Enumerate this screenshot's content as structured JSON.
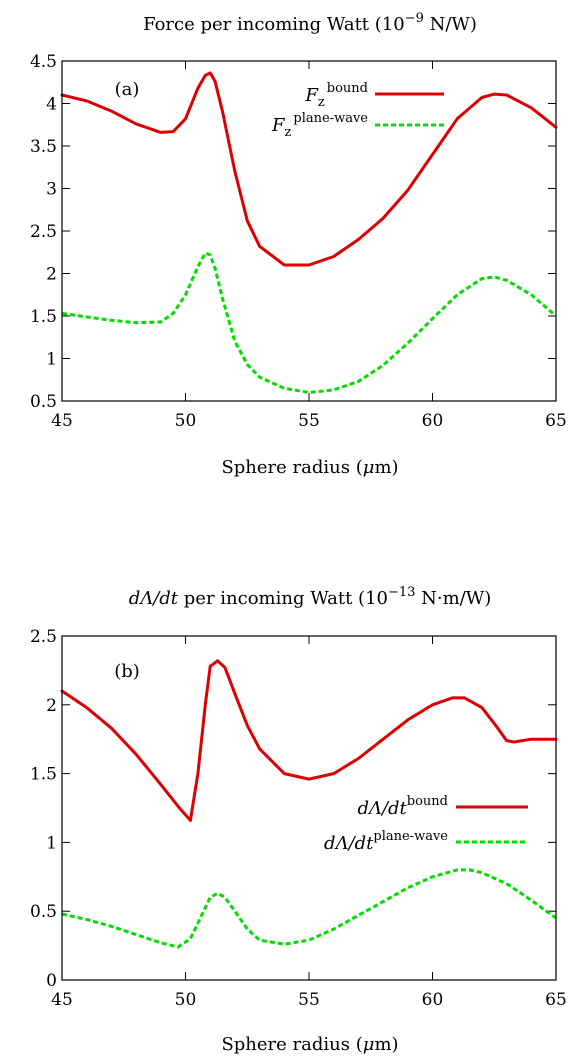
{
  "chart_data": [
    {
      "type": "line",
      "title": "Force per incoming Watt (10",
      "title_exp": "−9",
      "title_unit": " N/W)",
      "panel_label": "(a)",
      "xlabel": "Sphere radius (",
      "xlabel_sym": "μ",
      "xlabel_unit": "m)",
      "xlim": [
        45,
        65
      ],
      "ylim": [
        0.5,
        4.5
      ],
      "xticks": [
        45,
        50,
        55,
        60,
        65
      ],
      "xtick_labels": [
        "45",
        "50",
        "55",
        "60",
        "65"
      ],
      "yticks": [
        0.5,
        1,
        1.5,
        2,
        2.5,
        3,
        3.5,
        4,
        4.5
      ],
      "ytick_labels": [
        "0.5",
        "1",
        "1.5",
        "2",
        "2.5",
        "3",
        "3.5",
        "4",
        "4.5"
      ],
      "legend_position": "top-right",
      "series": [
        {
          "name": "F_z^bound",
          "legend_base": "F",
          "legend_sub": "z",
          "legend_sup": "bound",
          "color": "#dd0000",
          "dash": "solid",
          "x": [
            45,
            46,
            47,
            48,
            49,
            49.5,
            50,
            50.5,
            50.8,
            51,
            51.2,
            51.5,
            52,
            52.5,
            53,
            54,
            55,
            56,
            57,
            58,
            59,
            60,
            61,
            62,
            62.5,
            63,
            64,
            65
          ],
          "y": [
            4.1,
            4.03,
            3.91,
            3.76,
            3.66,
            3.67,
            3.82,
            4.18,
            4.33,
            4.36,
            4.26,
            3.9,
            3.2,
            2.62,
            2.32,
            2.1,
            2.1,
            2.2,
            2.4,
            2.65,
            2.98,
            3.4,
            3.82,
            4.07,
            4.11,
            4.1,
            3.95,
            3.72
          ]
        },
        {
          "name": "F_z^plane-wave",
          "legend_base": "F",
          "legend_sub": "z",
          "legend_sup": "plane-wave",
          "color": "#00dd00",
          "dash": "dashed",
          "x": [
            45,
            46,
            47,
            48,
            49,
            49.5,
            50,
            50.5,
            50.8,
            51,
            51.2,
            51.5,
            52,
            52.5,
            53,
            54,
            55,
            56,
            57,
            58,
            59,
            60,
            61,
            62,
            62.5,
            63,
            64,
            65
          ],
          "y": [
            1.53,
            1.49,
            1.45,
            1.42,
            1.43,
            1.53,
            1.75,
            2.08,
            2.24,
            2.22,
            2.06,
            1.7,
            1.2,
            0.93,
            0.78,
            0.65,
            0.6,
            0.63,
            0.73,
            0.92,
            1.18,
            1.47,
            1.75,
            1.94,
            1.96,
            1.92,
            1.75,
            1.5
          ]
        }
      ]
    },
    {
      "type": "line",
      "title": "dΛ/dt",
      "title_rest": " per incoming Watt (10",
      "title_exp": "−13",
      "title_unit": " N·m/W)",
      "panel_label": "(b)",
      "xlabel": "Sphere radius (",
      "xlabel_sym": "μ",
      "xlabel_unit": "m)",
      "xlim": [
        45,
        65
      ],
      "ylim": [
        0,
        2.5
      ],
      "xticks": [
        45,
        50,
        55,
        60,
        65
      ],
      "xtick_labels": [
        "45",
        "50",
        "55",
        "60",
        "65"
      ],
      "yticks": [
        0,
        0.5,
        1,
        1.5,
        2,
        2.5
      ],
      "ytick_labels": [
        "0",
        "0.5",
        "1",
        "1.5",
        "2",
        "2.5"
      ],
      "legend_position": "right",
      "series": [
        {
          "name": "dΛ/dt^bound",
          "legend_base": "dΛ/dt",
          "legend_sup": "bound",
          "color": "#dd0000",
          "dash": "solid",
          "x": [
            45,
            46,
            47,
            48,
            49,
            49.8,
            50.2,
            50.5,
            50.8,
            51,
            51.3,
            51.6,
            52,
            52.5,
            53,
            54,
            55,
            56,
            57,
            58,
            59,
            60,
            60.8,
            61.3,
            62,
            62.6,
            63,
            63.3,
            64,
            65
          ],
          "y": [
            2.1,
            1.98,
            1.83,
            1.64,
            1.42,
            1.24,
            1.16,
            1.5,
            2.0,
            2.28,
            2.32,
            2.27,
            2.08,
            1.85,
            1.68,
            1.5,
            1.46,
            1.5,
            1.61,
            1.75,
            1.89,
            2.0,
            2.05,
            2.05,
            1.98,
            1.84,
            1.74,
            1.73,
            1.75,
            1.75
          ]
        },
        {
          "name": "dΛ/dt^plane-wave",
          "legend_base": "dΛ/dt",
          "legend_sup": "plane-wave",
          "color": "#00dd00",
          "dash": "dashed",
          "x": [
            45,
            46,
            47,
            48,
            49,
            49.7,
            50.2,
            50.6,
            51,
            51.3,
            51.6,
            52,
            52.5,
            53,
            54,
            55,
            56,
            57,
            58,
            59,
            60,
            61,
            61.5,
            62,
            63,
            64,
            65
          ],
          "y": [
            0.48,
            0.44,
            0.39,
            0.33,
            0.27,
            0.24,
            0.3,
            0.45,
            0.6,
            0.63,
            0.6,
            0.5,
            0.37,
            0.29,
            0.26,
            0.29,
            0.37,
            0.47,
            0.57,
            0.67,
            0.75,
            0.8,
            0.8,
            0.78,
            0.7,
            0.58,
            0.45
          ]
        }
      ]
    }
  ]
}
